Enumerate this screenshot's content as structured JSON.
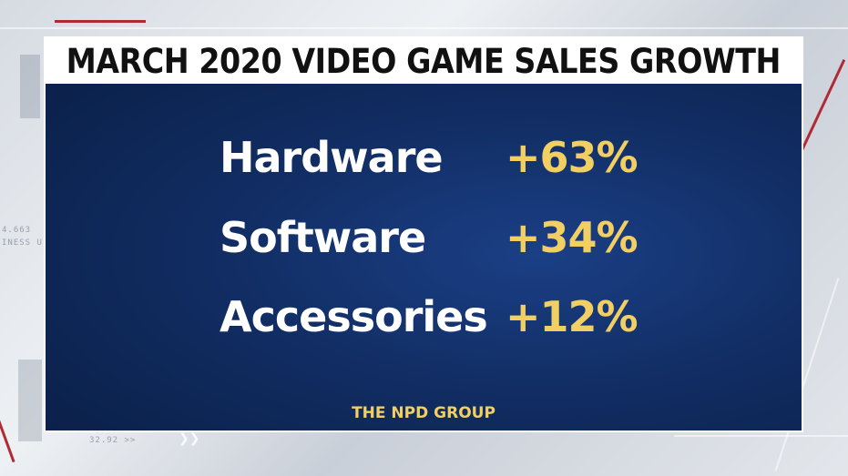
{
  "graphic": {
    "title": "MARCH 2020 VIDEO GAME SALES GROWTH",
    "rows": [
      {
        "category": "Hardware",
        "value": "+63%"
      },
      {
        "category": "Software",
        "value": "+34%"
      },
      {
        "category": "Accessories",
        "value": "+12%"
      }
    ],
    "source": "THE NPD GROUP"
  },
  "backdrop": {
    "readout_1": "4.663",
    "readout_2": "INESS U",
    "readout_3": "32.92 >>"
  },
  "colors": {
    "card_background": "#112d63",
    "value_yellow": "#f2cf62",
    "title_bar": "#ffffff",
    "accent_red": "#b02a35"
  }
}
